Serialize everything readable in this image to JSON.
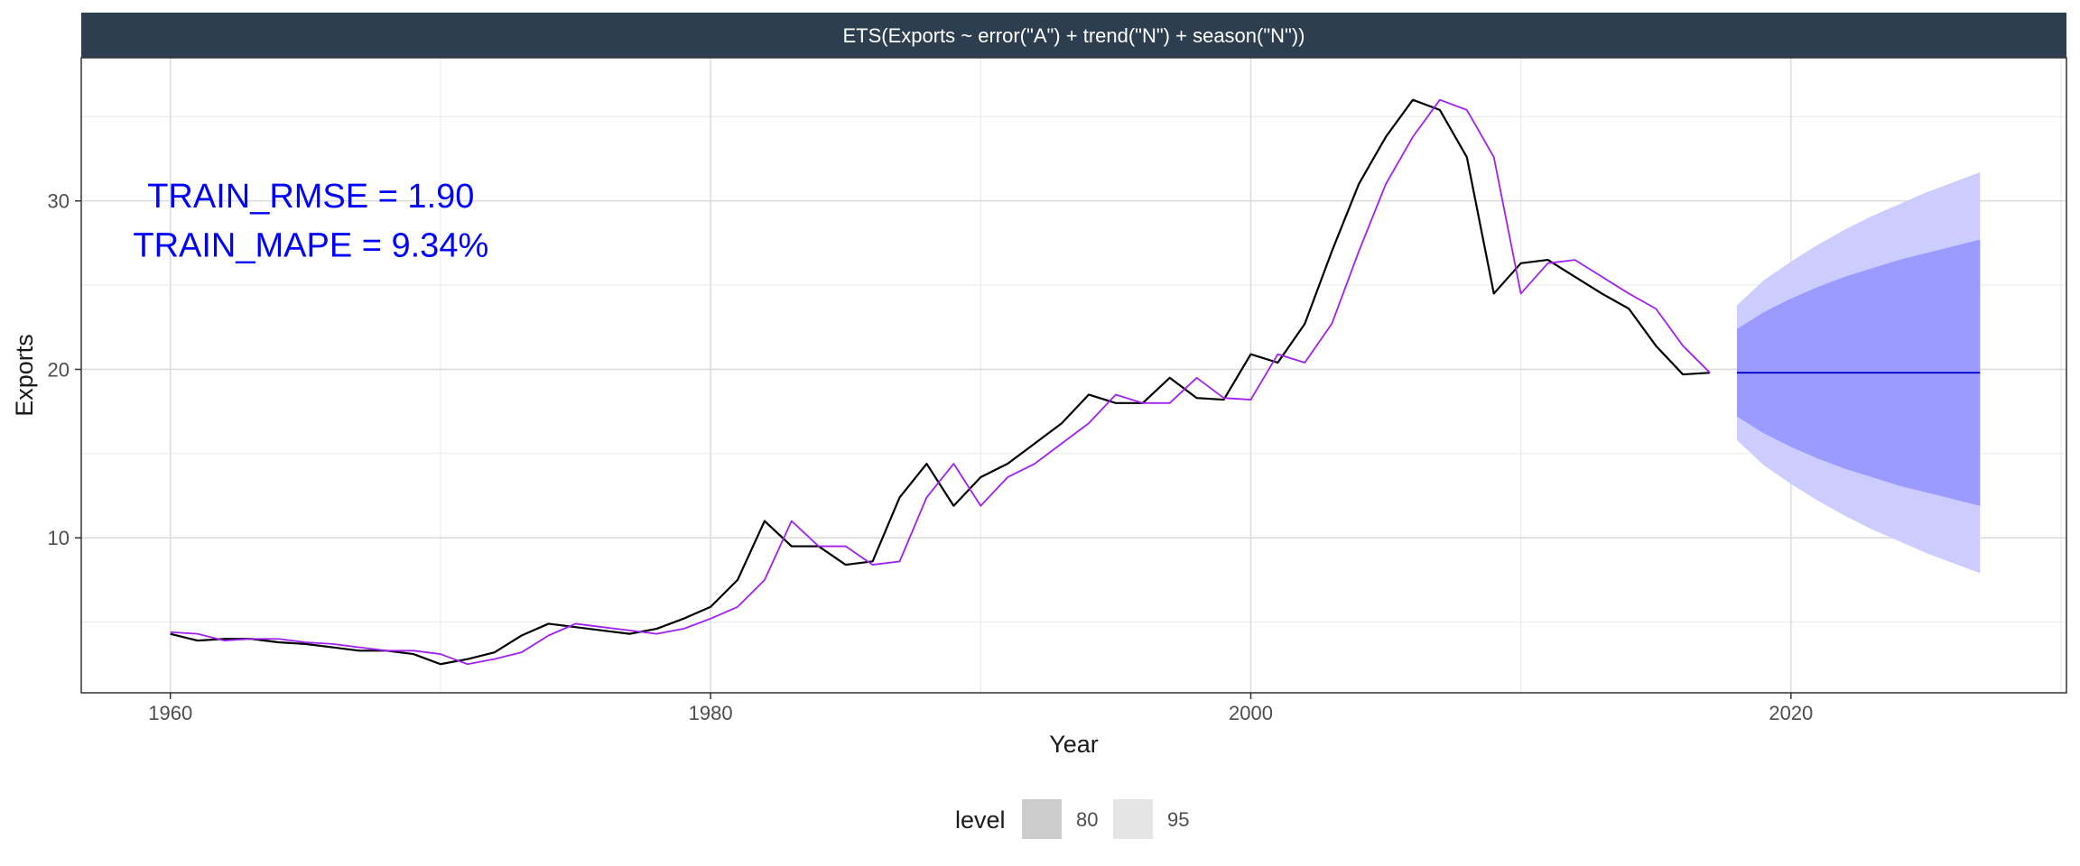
{
  "chart_data": {
    "type": "line",
    "title": "ETS(Exports ~ error(\"A\") + trend(\"N\") + season(\"N\"))",
    "xlabel": "Year",
    "ylabel": "Exports",
    "xlim": [
      1956.7,
      2030.2
    ],
    "ylim": [
      0.8,
      38.5
    ],
    "x_ticks": [
      1960,
      1980,
      2000,
      2020
    ],
    "x_tick_labels": [
      "1960",
      "1980",
      "2000",
      "2020"
    ],
    "y_ticks": [
      10,
      20,
      30
    ],
    "y_tick_labels": [
      "10",
      "20",
      "30"
    ],
    "x_minor_ticks": [
      1970,
      1990,
      2010,
      2030
    ],
    "y_minor_ticks": [
      5,
      15,
      25,
      35
    ],
    "grid": true,
    "annotations": [
      {
        "text": "TRAIN_RMSE = 1.90",
        "x": 1965.2,
        "y": 29.6,
        "anchor": "middle"
      },
      {
        "text": " TRAIN_MAPE = 9.34%",
        "x": 1965.2,
        "y": 26.7,
        "anchor": "middle"
      }
    ],
    "legend": {
      "title": "level",
      "position": "bottom",
      "entries": [
        "80",
        "95"
      ]
    },
    "colors": {
      "observed": "#000000",
      "fitted": "#a020f0",
      "forecast": "#0000cc",
      "band80": "#9b9bff",
      "band95": "#ccccff",
      "strip": "#2c3e50",
      "panel_border": "#333333",
      "grid": "#dddddd"
    },
    "series": [
      {
        "role": "observed",
        "x": [
          1960,
          1961,
          1962,
          1963,
          1964,
          1965,
          1966,
          1967,
          1968,
          1969,
          1970,
          1971,
          1972,
          1973,
          1974,
          1975,
          1976,
          1977,
          1978,
          1979,
          1980,
          1981,
          1982,
          1983,
          1984,
          1985,
          1986,
          1987,
          1988,
          1989,
          1990,
          1991,
          1992,
          1993,
          1994,
          1995,
          1996,
          1997,
          1998,
          1999,
          2000,
          2001,
          2002,
          2003,
          2004,
          2005,
          2006,
          2007,
          2008,
          2009,
          2010,
          2011,
          2012,
          2013,
          2014,
          2015,
          2016,
          2017
        ],
        "values": [
          4.3,
          3.9,
          4.0,
          4.0,
          3.8,
          3.7,
          3.5,
          3.3,
          3.3,
          3.1,
          2.5,
          2.8,
          3.2,
          4.2,
          4.9,
          4.7,
          4.5,
          4.3,
          4.6,
          5.2,
          5.9,
          7.5,
          11.0,
          9.5,
          9.5,
          8.4,
          8.6,
          12.4,
          14.4,
          11.9,
          13.6,
          14.4,
          15.6,
          16.8,
          18.5,
          18.0,
          18.0,
          19.5,
          18.3,
          18.2,
          20.9,
          20.4,
          22.7,
          27.0,
          31.0,
          33.8,
          36.0,
          35.4,
          32.6,
          24.5,
          26.3,
          26.5,
          25.5,
          24.5,
          23.6,
          21.4,
          19.7,
          19.8
        ]
      },
      {
        "role": "fitted",
        "x": [
          1960,
          1961,
          1962,
          1963,
          1964,
          1965,
          1966,
          1967,
          1968,
          1969,
          1970,
          1971,
          1972,
          1973,
          1974,
          1975,
          1976,
          1977,
          1978,
          1979,
          1980,
          1981,
          1982,
          1983,
          1984,
          1985,
          1986,
          1987,
          1988,
          1989,
          1990,
          1991,
          1992,
          1993,
          1994,
          1995,
          1996,
          1997,
          1998,
          1999,
          2000,
          2001,
          2002,
          2003,
          2004,
          2005,
          2006,
          2007,
          2008,
          2009,
          2010,
          2011,
          2012,
          2013,
          2014,
          2015,
          2016,
          2017
        ],
        "values": [
          4.4,
          4.3,
          3.9,
          4.0,
          4.0,
          3.8,
          3.7,
          3.5,
          3.3,
          3.3,
          3.1,
          2.5,
          2.8,
          3.2,
          4.2,
          4.9,
          4.7,
          4.5,
          4.3,
          4.6,
          5.2,
          5.9,
          7.5,
          11.0,
          9.5,
          9.5,
          8.4,
          8.6,
          12.4,
          14.4,
          11.9,
          13.6,
          14.4,
          15.6,
          16.8,
          18.5,
          18.0,
          18.0,
          19.5,
          18.3,
          18.2,
          20.9,
          20.4,
          22.7,
          27.0,
          31.0,
          33.8,
          36.0,
          35.4,
          32.6,
          24.5,
          26.3,
          26.5,
          25.5,
          24.5,
          23.6,
          21.4,
          19.8
        ]
      },
      {
        "role": "forecast",
        "x": [
          2018,
          2027
        ],
        "values": [
          19.8,
          19.8
        ]
      }
    ],
    "intervals": [
      {
        "level": "95",
        "x": [
          2018,
          2019,
          2020,
          2021,
          2022,
          2023,
          2024,
          2025,
          2026,
          2027
        ],
        "lower": [
          15.8,
          14.3,
          13.2,
          12.2,
          11.3,
          10.5,
          9.8,
          9.1,
          8.5,
          7.9
        ],
        "upper": [
          23.8,
          25.3,
          26.4,
          27.4,
          28.3,
          29.1,
          29.8,
          30.5,
          31.1,
          31.7
        ]
      },
      {
        "level": "80",
        "x": [
          2018,
          2019,
          2020,
          2021,
          2022,
          2023,
          2024,
          2025,
          2026,
          2027
        ],
        "lower": [
          17.2,
          16.2,
          15.4,
          14.7,
          14.1,
          13.6,
          13.1,
          12.7,
          12.3,
          11.9
        ],
        "upper": [
          22.4,
          23.4,
          24.2,
          24.9,
          25.5,
          26.0,
          26.5,
          26.9,
          27.3,
          27.7
        ]
      }
    ]
  }
}
